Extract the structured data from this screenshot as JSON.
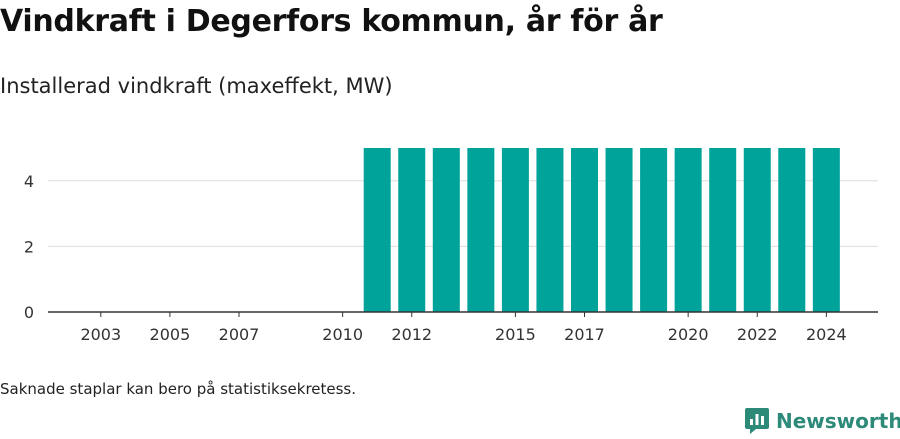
{
  "title": "Vindkraft i Degerfors kommun, år för år",
  "subtitle": "Installerad vindkraft (maxeffekt, MW)",
  "footnote": "Saknade staplar kan bero på statistiksekretess.",
  "brand": {
    "name": "Newsworthy",
    "color": "#2d8a79",
    "icon": "newsworthy-logo-icon"
  },
  "colors": {
    "bar": "#00a39a",
    "grid": "#dddddd",
    "axis": "#333333"
  },
  "chart_data": {
    "type": "bar",
    "title": "Vindkraft i Degerfors kommun, år för år",
    "subtitle": "Installerad vindkraft (maxeffekt, MW)",
    "xlabel": "",
    "ylabel": "",
    "categories": [
      2002,
      2003,
      2004,
      2005,
      2006,
      2007,
      2008,
      2009,
      2010,
      2011,
      2012,
      2013,
      2014,
      2015,
      2016,
      2017,
      2018,
      2019,
      2020,
      2021,
      2022,
      2023,
      2024
    ],
    "values": [
      null,
      null,
      null,
      null,
      null,
      null,
      null,
      null,
      null,
      5,
      5,
      5,
      5,
      5,
      5,
      5,
      5,
      5,
      5,
      5,
      5,
      5,
      5
    ],
    "x_tick_labels": [
      "2003",
      "2005",
      "2007",
      "2010",
      "2012",
      "2015",
      "2017",
      "2020",
      "2022",
      "2024"
    ],
    "y_ticks": [
      0,
      2,
      4
    ],
    "ylim": [
      0,
      5
    ],
    "grid": true,
    "legend": "none"
  }
}
